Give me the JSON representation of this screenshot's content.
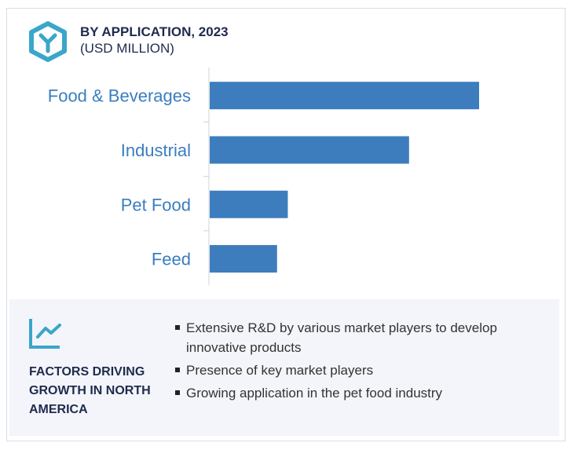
{
  "header": {
    "title": "BY APPLICATION, 2023",
    "subtitle": "(USD MILLION)",
    "logo_icon": "hexagon-y-logo"
  },
  "chart_data": {
    "type": "bar",
    "orientation": "horizontal",
    "categories": [
      "Food & Beverages",
      "Industrial",
      "Pet Food",
      "Feed"
    ],
    "values": [
      100,
      74,
      29,
      25
    ],
    "xlim": [
      0,
      100
    ],
    "grid": false,
    "bar_color": "#3d7dbd",
    "label_color": "#3a7dbf"
  },
  "factors": {
    "icon": "line-chart-icon",
    "heading": "FACTORS DRIVING GROWTH IN NORTH AMERICA",
    "items": [
      "Extensive R&D by various market players to develop innovative products",
      "Presence of key market players",
      "Growing application in the pet food industry"
    ]
  }
}
